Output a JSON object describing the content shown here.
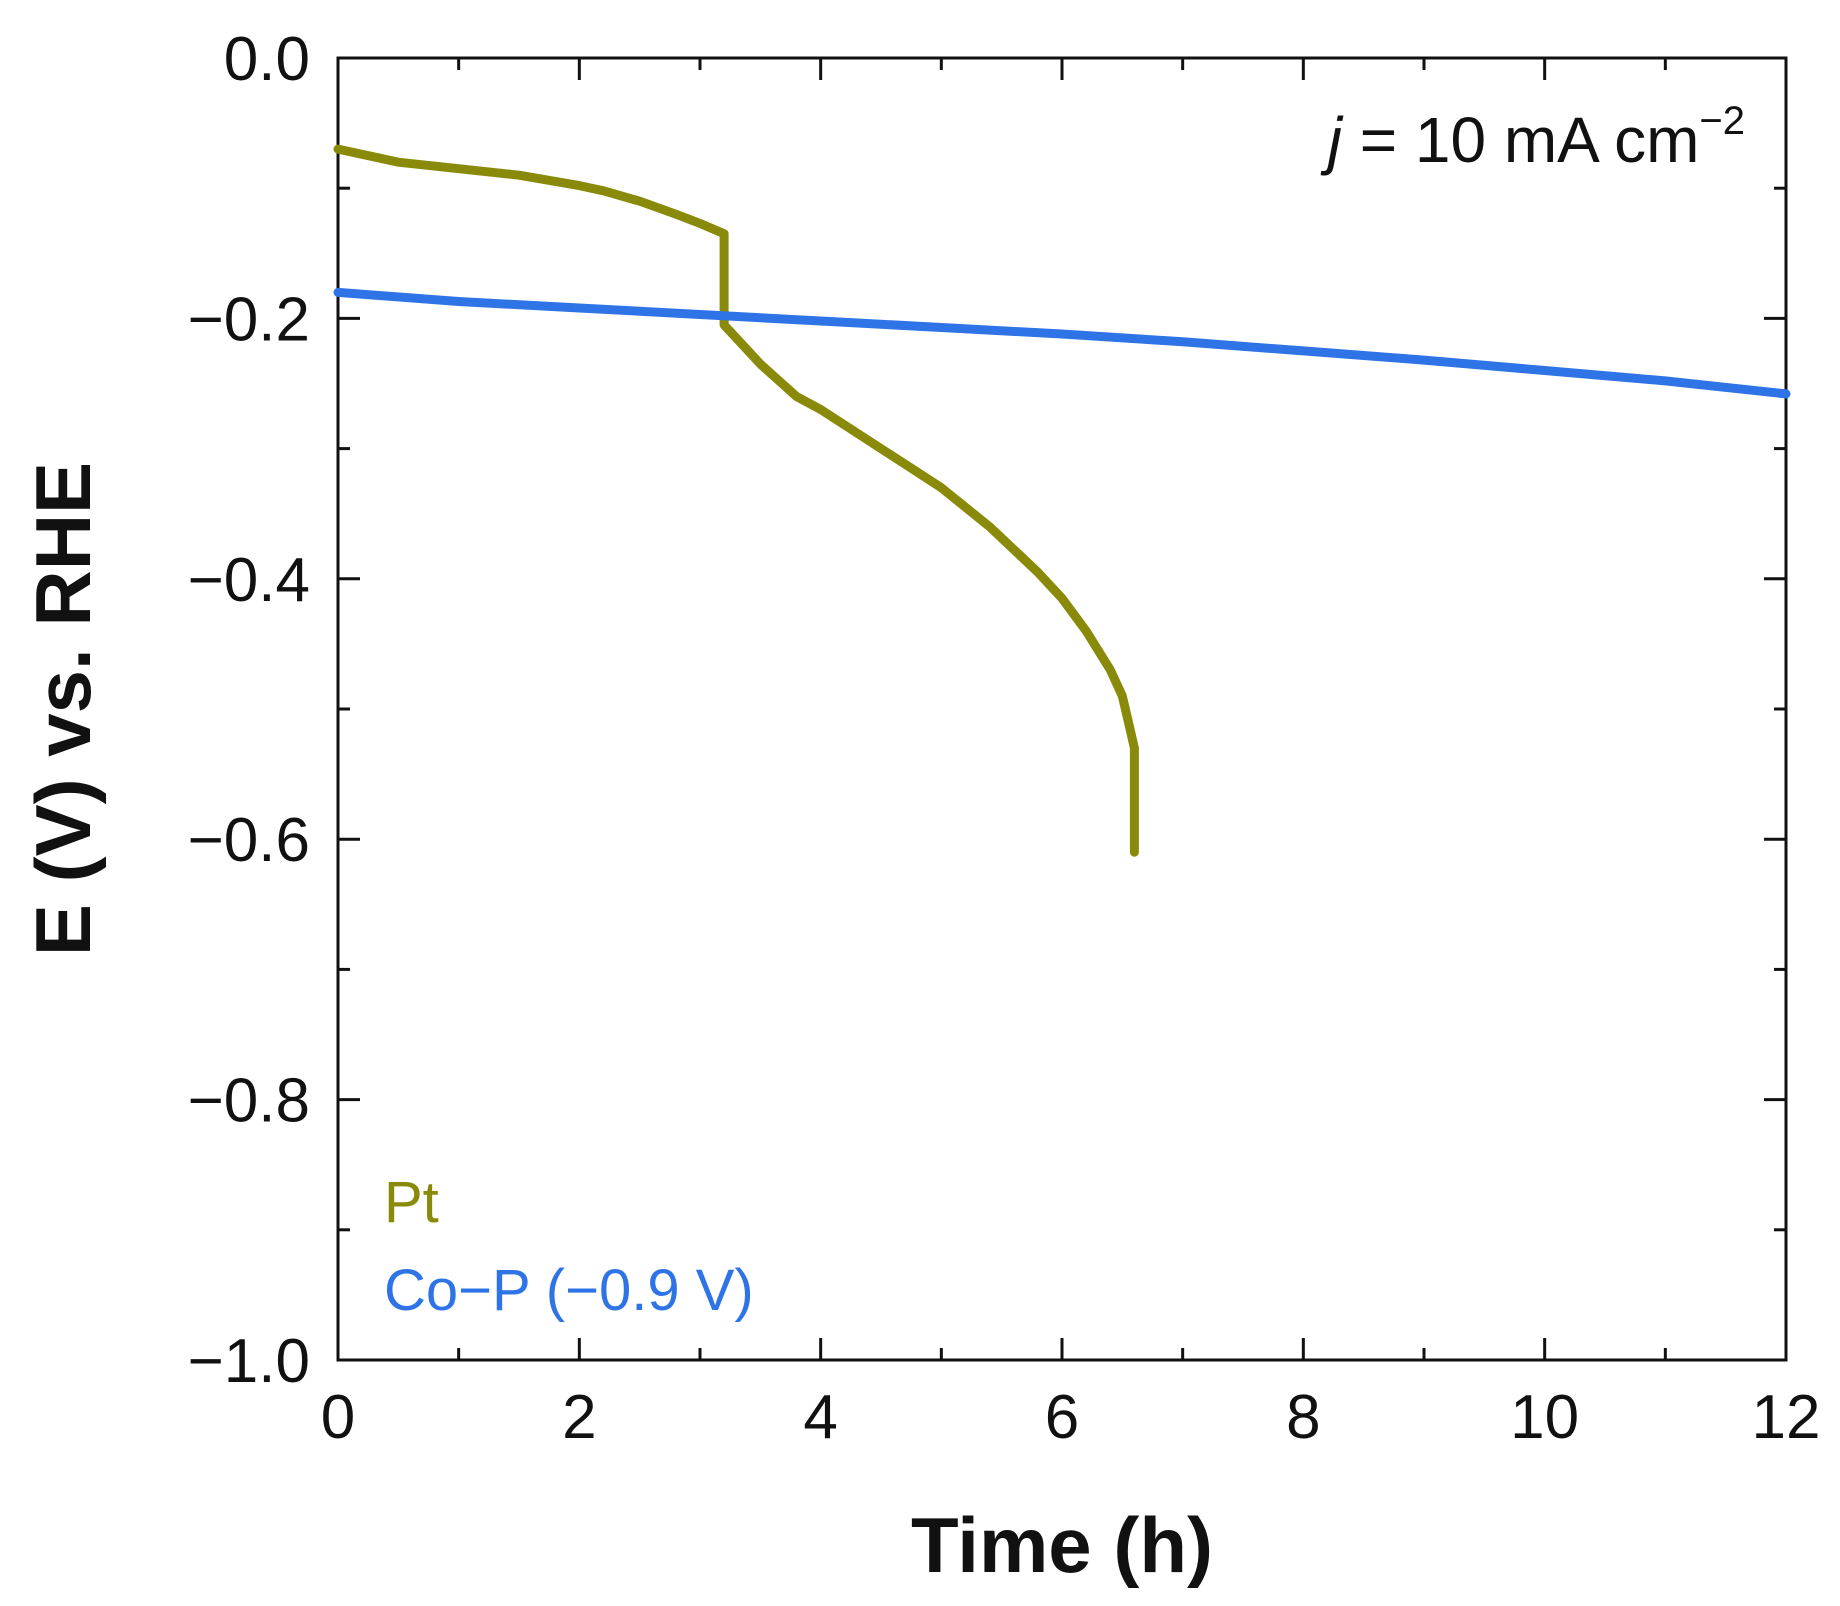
{
  "chart_data": {
    "type": "line",
    "title": "",
    "xlabel": "Time (h)",
    "ylabel": "E (V) vs. RHE",
    "xlim": [
      0,
      12
    ],
    "ylim": [
      -1.0,
      0.0
    ],
    "x_ticks": [
      "0",
      "2",
      "4",
      "6",
      "8",
      "10",
      "12"
    ],
    "y_ticks": [
      "0.0",
      "−0.2",
      "−0.4",
      "−0.6",
      "−0.8",
      "−1.0"
    ],
    "x_tick_values": [
      0,
      2,
      4,
      6,
      8,
      10,
      12
    ],
    "y_tick_values": [
      0,
      -0.2,
      -0.4,
      -0.6,
      -0.8,
      -1.0
    ],
    "grid": false,
    "annotation": {
      "italic": "j",
      "text": " = 10 mA cm",
      "superscript": "−2"
    },
    "legend_position": "bottom-left",
    "series": [
      {
        "name": "Pt",
        "color": "#8a8a0a",
        "x": [
          0,
          0.5,
          1.0,
          1.5,
          2.0,
          2.2,
          2.5,
          2.8,
          3.0,
          3.2,
          3.2,
          3.3,
          3.5,
          3.8,
          4.0,
          4.5,
          5.0,
          5.4,
          5.8,
          6.0,
          6.2,
          6.4,
          6.5,
          6.55,
          6.6,
          6.6
        ],
        "values": [
          -0.07,
          -0.08,
          -0.085,
          -0.09,
          -0.098,
          -0.102,
          -0.11,
          -0.12,
          -0.127,
          -0.135,
          -0.205,
          -0.215,
          -0.235,
          -0.26,
          -0.27,
          -0.3,
          -0.33,
          -0.36,
          -0.395,
          -0.415,
          -0.44,
          -0.47,
          -0.49,
          -0.51,
          -0.53,
          -0.61
        ]
      },
      {
        "name": "Co−P (−0.9 V)",
        "color": "#2f74e6",
        "x": [
          0,
          1,
          2,
          3,
          4,
          5,
          6,
          7,
          8,
          9,
          10,
          11,
          12
        ],
        "values": [
          -0.18,
          -0.187,
          -0.192,
          -0.197,
          -0.202,
          -0.207,
          -0.212,
          -0.218,
          -0.225,
          -0.232,
          -0.24,
          -0.248,
          -0.258
        ]
      }
    ]
  }
}
